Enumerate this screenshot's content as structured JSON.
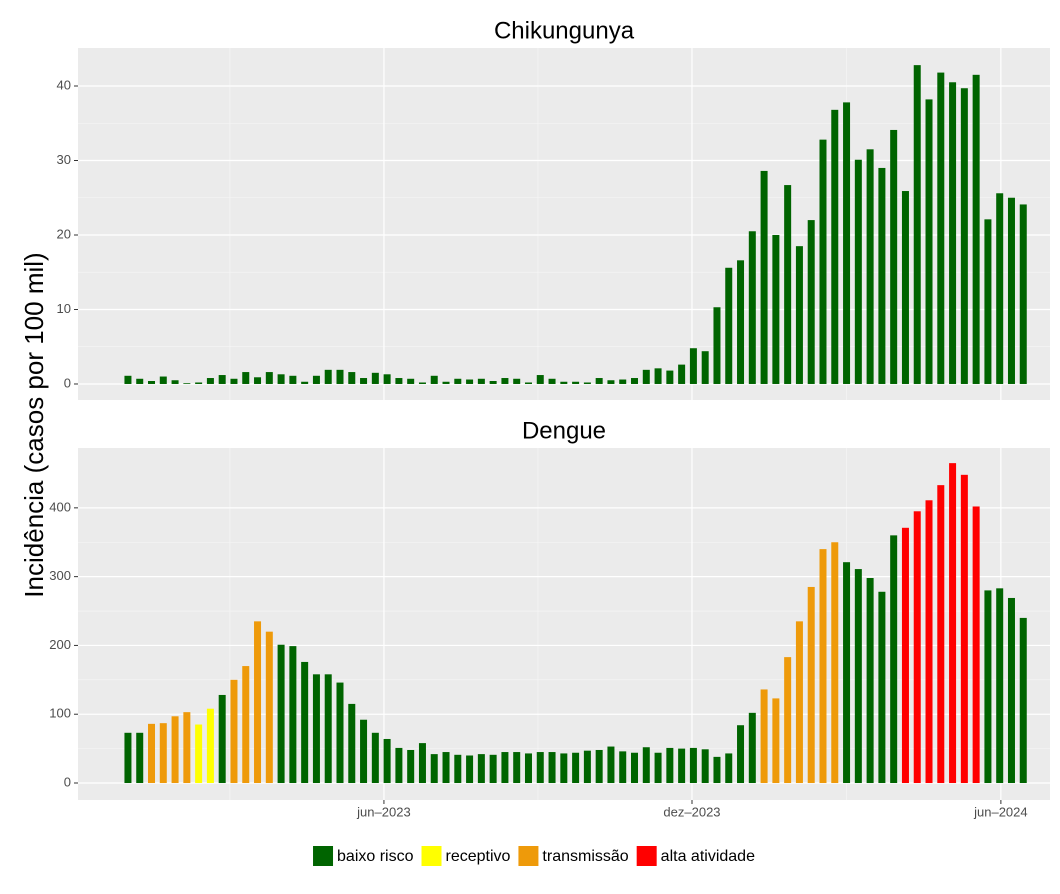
{
  "y_label": "Incidência (casos por 100 mil)",
  "legend": [
    {
      "name": "baixo risco",
      "color": "#006400"
    },
    {
      "name": "receptivo",
      "color": "#ffff00"
    },
    {
      "name": "transmissão",
      "color": "#ee9a0a"
    },
    {
      "name": "alta atividade",
      "color": "#ff0000"
    }
  ],
  "xlim": [
    -4.24,
    78.27
  ],
  "xticks": [
    {
      "value": 21.73,
      "label": "jun–2023"
    },
    {
      "value": 47.88,
      "label": "dez–2023"
    },
    {
      "value": 74.1,
      "label": "jun–2024"
    }
  ],
  "chart_data": [
    {
      "type": "bar",
      "title": "Chikungunya",
      "values": [
        1.1,
        0.7,
        0.4,
        1.0,
        0.5,
        0.1,
        0.2,
        0.8,
        1.2,
        0.7,
        1.6,
        0.9,
        1.6,
        1.3,
        1.1,
        0.3,
        1.1,
        1.9,
        1.9,
        1.6,
        0.8,
        1.5,
        1.3,
        0.8,
        0.7,
        0.2,
        1.1,
        0.3,
        0.7,
        0.6,
        0.7,
        0.4,
        0.8,
        0.7,
        0.2,
        1.2,
        0.7,
        0.3,
        0.3,
        0.2,
        0.8,
        0.5,
        0.6,
        0.8,
        1.9,
        2.1,
        1.8,
        2.6,
        4.8,
        4.4,
        10.3,
        15.6,
        16.6,
        20.5,
        28.6,
        20.0,
        26.7,
        18.5,
        22.0,
        32.8,
        36.8,
        37.8,
        30.1,
        31.5,
        29.0,
        34.1,
        25.9,
        42.8,
        38.2,
        41.8,
        40.5,
        39.7,
        41.5,
        22.1,
        25.6,
        25.0,
        24.1
      ],
      "levels": [
        0,
        0,
        0,
        0,
        0,
        0,
        0,
        0,
        0,
        0,
        0,
        0,
        0,
        0,
        0,
        0,
        0,
        0,
        0,
        0,
        0,
        0,
        0,
        0,
        0,
        0,
        0,
        0,
        0,
        0,
        0,
        0,
        0,
        0,
        0,
        0,
        0,
        0,
        0,
        0,
        0,
        0,
        0,
        0,
        0,
        0,
        0,
        0,
        0,
        0,
        0,
        0,
        0,
        0,
        0,
        0,
        0,
        0,
        0,
        0,
        0,
        0,
        0,
        0,
        0,
        0,
        0,
        0,
        0,
        0,
        0,
        0,
        0,
        0,
        0,
        0,
        0
      ],
      "ylim": [
        -2.15,
        45.1
      ],
      "yticks": [
        0,
        10,
        20,
        30,
        40
      ]
    },
    {
      "type": "bar",
      "title": "Dengue",
      "values": [
        73,
        73,
        86,
        87,
        97,
        103,
        85,
        108,
        128,
        150,
        170,
        235,
        220,
        201,
        199,
        176,
        158,
        158,
        146,
        115,
        92,
        73,
        64,
        51,
        48,
        58,
        42,
        45,
        41,
        40,
        42,
        41,
        45,
        45,
        43,
        45,
        45,
        43,
        44,
        47,
        48,
        53,
        46,
        44,
        52,
        44,
        51,
        50,
        51,
        49,
        38,
        43,
        84,
        102,
        136,
        123,
        183,
        235,
        285,
        340,
        350,
        321,
        311,
        298,
        278,
        360,
        371,
        395,
        411,
        433,
        465,
        448,
        402,
        280,
        283,
        269,
        240
      ],
      "levels": [
        0,
        0,
        2,
        2,
        2,
        2,
        1,
        1,
        0,
        2,
        2,
        2,
        2,
        0,
        0,
        0,
        0,
        0,
        0,
        0,
        0,
        0,
        0,
        0,
        0,
        0,
        0,
        0,
        0,
        0,
        0,
        0,
        0,
        0,
        0,
        0,
        0,
        0,
        0,
        0,
        0,
        0,
        0,
        0,
        0,
        0,
        0,
        0,
        0,
        0,
        0,
        0,
        0,
        0,
        2,
        2,
        2,
        2,
        2,
        2,
        2,
        0,
        0,
        0,
        0,
        0,
        3,
        3,
        3,
        3,
        3,
        3,
        3,
        0,
        0,
        0,
        0
      ],
      "ylim": [
        -24.7,
        487
      ],
      "yticks": [
        0,
        100,
        200,
        300,
        400
      ]
    }
  ]
}
